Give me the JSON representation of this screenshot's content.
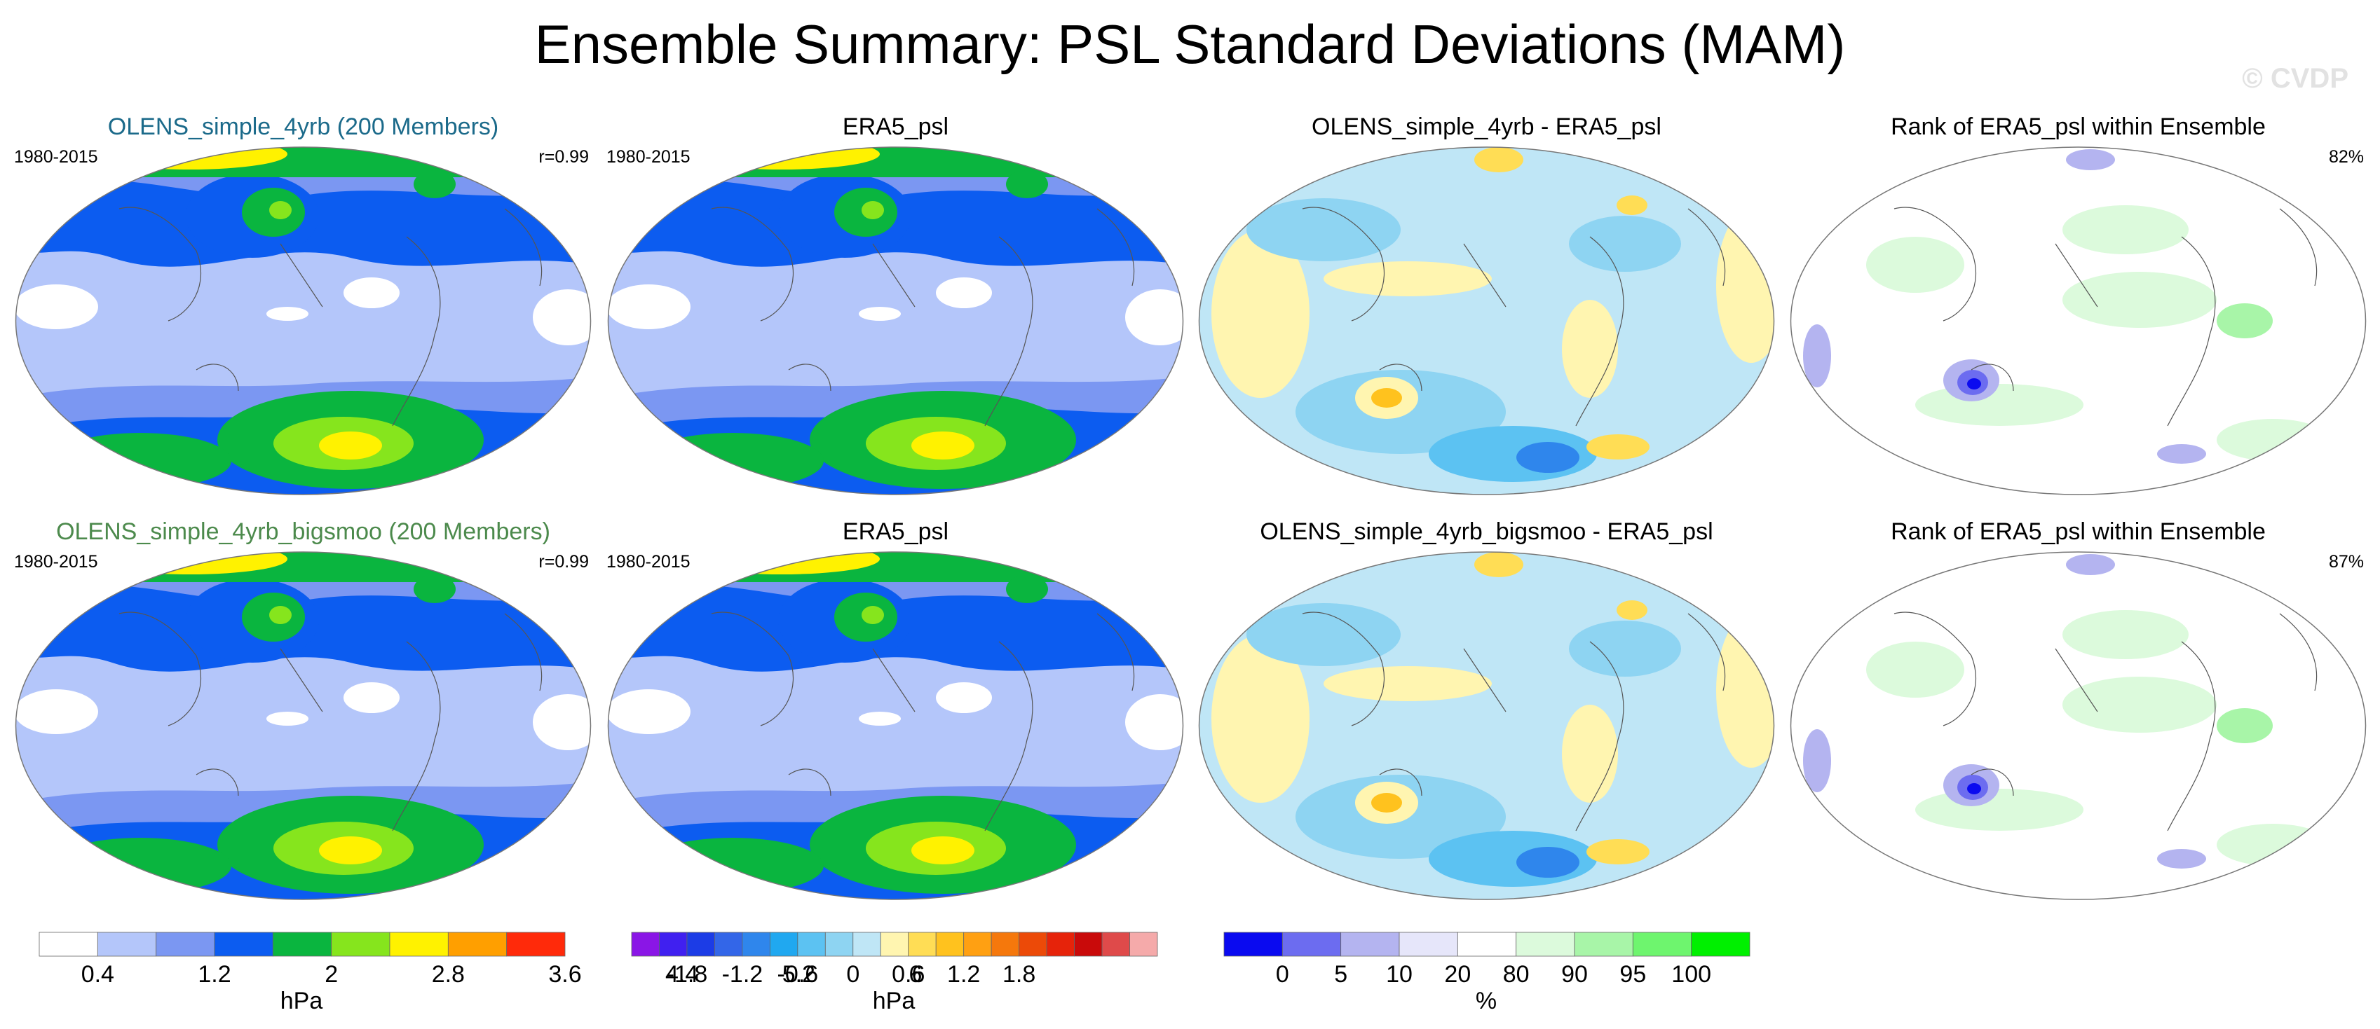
{
  "figure": {
    "title": "Ensemble Summary: PSL Standard Deviations (MAM)",
    "watermark": "© CVDP"
  },
  "panels": [
    {
      "title": "OLENS_simple_4yrb (200 Members)",
      "title_color": "#1b6a8a",
      "period": "1980-2015",
      "stat": "r=0.99",
      "kind": "std"
    },
    {
      "title": "ERA5_psl",
      "title_color": "#000000",
      "period": "1980-2015",
      "stat": "",
      "kind": "std"
    },
    {
      "title": "OLENS_simple_4yrb - ERA5_psl",
      "title_color": "#000000",
      "period": "",
      "stat": "",
      "kind": "diff"
    },
    {
      "title": "Rank of ERA5_psl within Ensemble",
      "title_color": "#000000",
      "period": "",
      "stat": "82%",
      "kind": "rank"
    },
    {
      "title": "OLENS_simple_4yrb_bigsmoo (200 Members)",
      "title_color": "#4c8a4c",
      "period": "1980-2015",
      "stat": "r=0.99",
      "kind": "std"
    },
    {
      "title": "ERA5_psl",
      "title_color": "#000000",
      "period": "1980-2015",
      "stat": "",
      "kind": "std"
    },
    {
      "title": "OLENS_simple_4yrb_bigsmoo - ERA5_psl",
      "title_color": "#000000",
      "period": "",
      "stat": "",
      "kind": "diff"
    },
    {
      "title": "Rank of ERA5_psl within Ensemble",
      "title_color": "#000000",
      "period": "",
      "stat": "87%",
      "kind": "rank"
    }
  ],
  "chart_data": [
    {
      "type": "heatmap",
      "name": "std_colorbar",
      "unit": "hPa",
      "levels": [
        0.4,
        0.8,
        1.2,
        1.6,
        2,
        2.4,
        2.8,
        3.2,
        3.6,
        4,
        4.4,
        4.8,
        5.2,
        5.6,
        6,
        6.4
      ],
      "tick_labels": [
        "0.4",
        "1.2",
        "2",
        "2.8",
        "3.6",
        "4.4",
        "5.2",
        "6"
      ],
      "colors": [
        "#ffffff",
        "#b4c6fa",
        "#7b97f2",
        "#0c5cf0",
        "#0ab53f",
        "#86e51d",
        "#fff200",
        "#ff9f00",
        "#ff2a0a"
      ]
    },
    {
      "type": "heatmap",
      "name": "diff_colorbar",
      "unit": "hPa",
      "levels": [
        -2.1,
        -1.8,
        -1.5,
        -1.2,
        -0.9,
        -0.6,
        -0.3,
        0,
        0.3,
        0.6,
        0.9,
        1.2,
        1.5,
        1.8
      ],
      "tick_labels": [
        "-1.8",
        "-1.2",
        "-0.6",
        "0",
        "0.6",
        "1.2",
        "1.8"
      ],
      "colors": [
        "#8a16e6",
        "#4020f0",
        "#1c3ce6",
        "#3366e8",
        "#2f86ec",
        "#20a8f0",
        "#5cc2f2",
        "#8ed4f2",
        "#bfe6f6",
        "#fff5b0",
        "#ffdd55",
        "#ffc21e",
        "#ffa012",
        "#f5780c",
        "#ec4a08",
        "#e6230a",
        "#c90a0a",
        "#df4a4a",
        "#f5aaaa"
      ]
    },
    {
      "type": "heatmap",
      "name": "rank_colorbar",
      "unit": "%",
      "levels": [
        0,
        5,
        10,
        20,
        80,
        90,
        95,
        100
      ],
      "tick_labels": [
        "0",
        "5",
        "10",
        "20",
        "80",
        "90",
        "95",
        "100"
      ],
      "colors": [
        "#0a0af0",
        "#6c6cf0",
        "#b4b4f0",
        "#e6e6fa",
        "#ffffff",
        "#dcfadc",
        "#a8f5a8",
        "#6ef56e",
        "#00f000"
      ]
    }
  ]
}
